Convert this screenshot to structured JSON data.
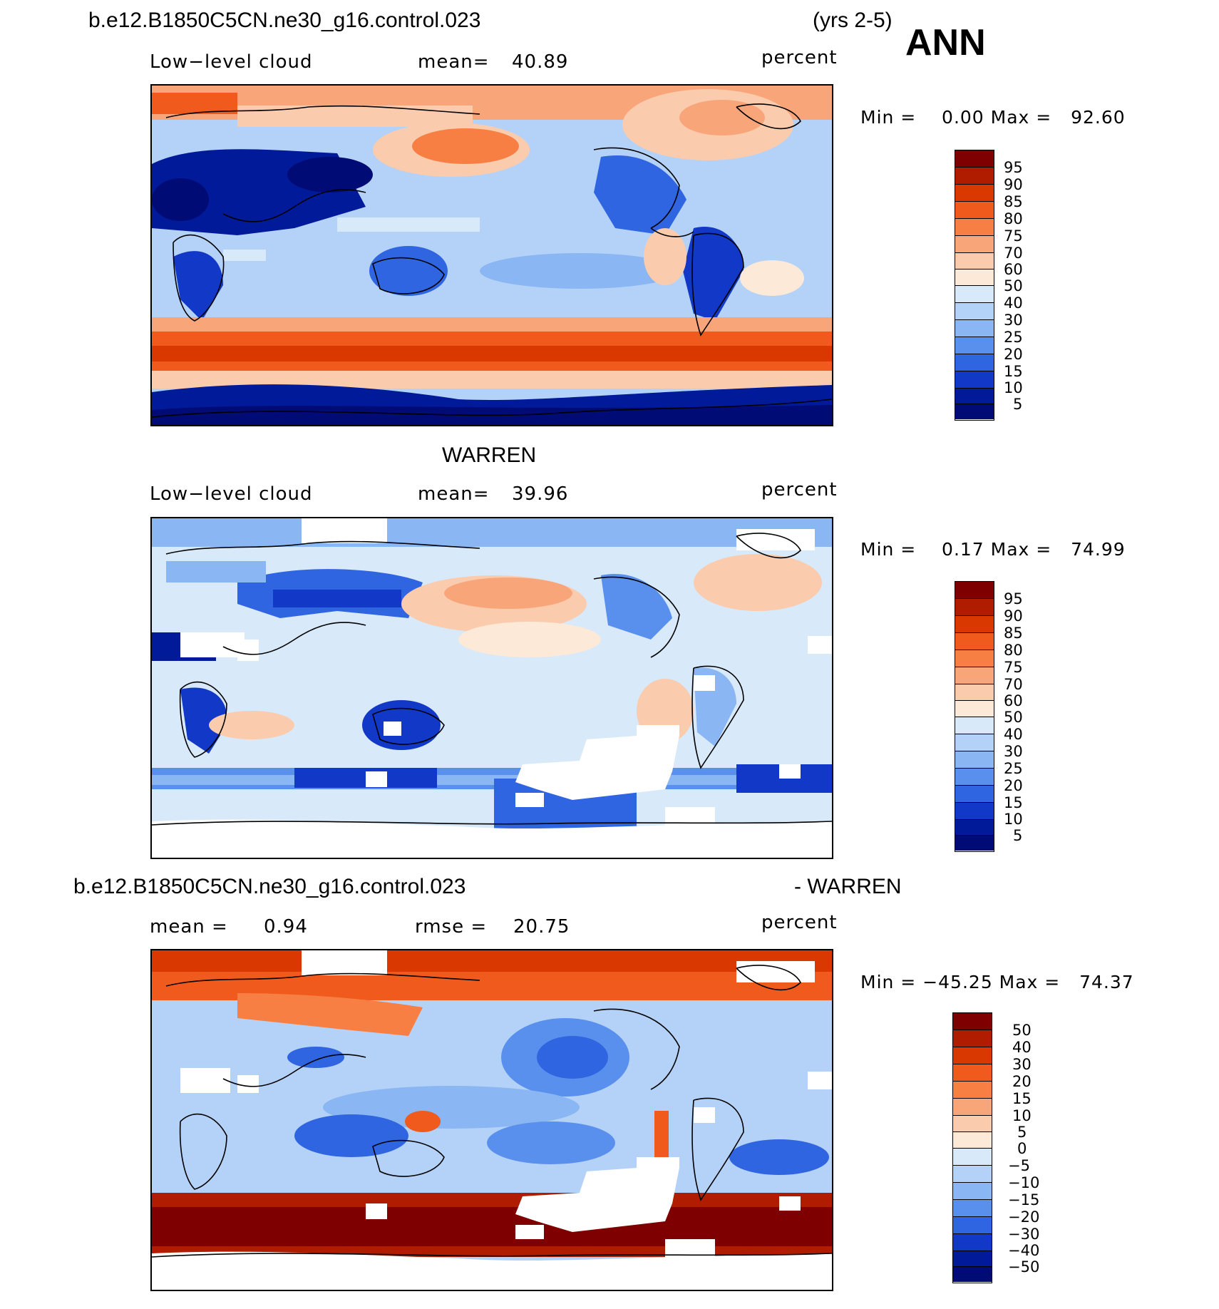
{
  "header": {
    "case_name": "b.e12.B1850C5CN.ne30_g16.control.023",
    "years": "(yrs 2-5)",
    "season": "ANN"
  },
  "panels": [
    {
      "id": "model",
      "variable": "Low−level cloud",
      "stat_label": "mean=",
      "stat_value": "40.89",
      "units": "percent",
      "min_max": "Min =    0.00 Max =   92.60",
      "colorbar_labels": [
        "95",
        "90",
        "85",
        "80",
        "75",
        "70",
        "60",
        "50",
        "40",
        "30",
        "25",
        "20",
        "15",
        "10",
        "5"
      ]
    },
    {
      "id": "obs",
      "title": "WARREN",
      "variable": "Low−level cloud",
      "stat_label": "mean=",
      "stat_value": "39.96",
      "units": "percent",
      "min_max": "Min =    0.17 Max =   74.99",
      "colorbar_labels": [
        "95",
        "90",
        "85",
        "80",
        "75",
        "70",
        "60",
        "50",
        "40",
        "30",
        "25",
        "20",
        "15",
        "10",
        "5"
      ]
    },
    {
      "id": "diff",
      "title_left": "b.e12.B1850C5CN.ne30_g16.control.023",
      "title_right": "- WARREN",
      "mean_label": "mean =",
      "mean_value": "0.94",
      "rmse_label": "rmse =",
      "rmse_value": "20.75",
      "units": "percent",
      "min_max": "Min = −45.25 Max =   74.37",
      "colorbar_labels": [
        "50",
        "40",
        "30",
        "20",
        "15",
        "10",
        "5",
        "0",
        "−5",
        "−10",
        "−15",
        "−20",
        "−30",
        "−40",
        "−50"
      ]
    }
  ],
  "colors": {
    "palette": [
      "#7f0000",
      "#b01c00",
      "#d93800",
      "#f05a1c",
      "#f77f44",
      "#f9a57a",
      "#fbcbae",
      "#fde9d8",
      "#d8e9f9",
      "#b4d2f7",
      "#8ab6f3",
      "#5a90ed",
      "#2f65e0",
      "#1138c6",
      "#001a9a",
      "#000b75"
    ]
  }
}
